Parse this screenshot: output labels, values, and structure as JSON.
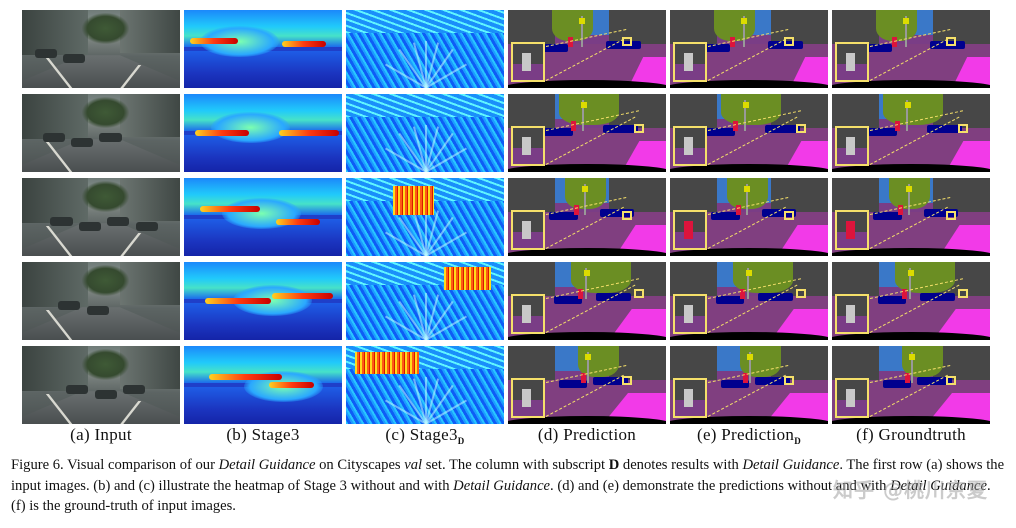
{
  "figure": {
    "columns": [
      {
        "key": "input",
        "label": "(a) Input",
        "subscript": ""
      },
      {
        "key": "stage3",
        "label": "(b) Stage3",
        "subscript": ""
      },
      {
        "key": "stage3_d",
        "label": "(c) Stage3",
        "subscript": "D"
      },
      {
        "key": "prediction",
        "label": "(d) Prediction",
        "subscript": ""
      },
      {
        "key": "prediction_d",
        "label": "(e) Prediction",
        "subscript": "D"
      },
      {
        "key": "groundtruth",
        "label": "(f) Groundtruth",
        "subscript": ""
      }
    ],
    "row_count": 5,
    "palette": {
      "road": "#803f80",
      "sidewalk": "#f23ae8",
      "building": "#474747",
      "vegetation": "#6b8e23",
      "sky": "#3a78c8",
      "car": "#00008e",
      "person": "#dc143c",
      "traffic_sign": "#dcdc00",
      "zoom_box": "#f5e06a",
      "heat_low": "#1424a8",
      "heat_high": "#d81a00"
    }
  },
  "caption": {
    "fig_label": "Figure 6.",
    "t1": " Visual comparison of our ",
    "e1": "Detail Guidance",
    "t2": " on Cityscapes ",
    "e2": "val",
    "t3": " set.  The column with subscript ",
    "b1": "D",
    "t4": " denotes results with ",
    "e3": "Detail Guidance",
    "t5": ". The first row (a) shows the input images. (b) and (c) illustrate the heatmap of Stage 3 without and with ",
    "e4": "Detail Guidance",
    "t6": ". (d) and (e) demonstrate the predictions without and with ",
    "e5": "Detail Guidance",
    "t7": ". (f) is the ground-truth of input images."
  },
  "watermark": "知乎 @桃川京夏"
}
